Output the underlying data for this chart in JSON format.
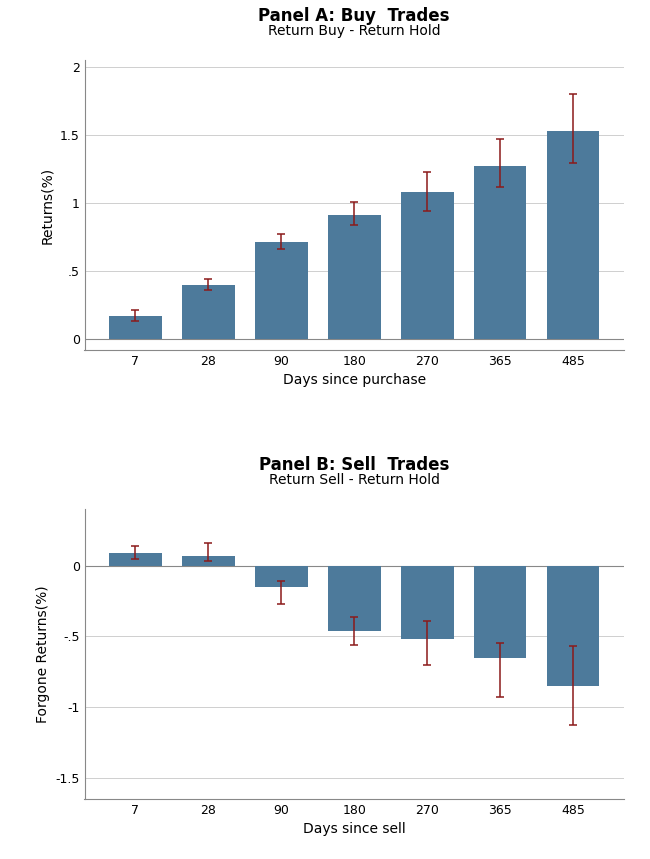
{
  "panel_a": {
    "title": "Panel A: Buy  Trades",
    "subtitle": "Return Buy - Return Hold",
    "xlabel": "Days since purchase",
    "ylabel": "Returns(%)",
    "categories": [
      7,
      28,
      90,
      180,
      270,
      365,
      485
    ],
    "values": [
      0.17,
      0.4,
      0.71,
      0.91,
      1.08,
      1.27,
      1.53
    ],
    "err_low": [
      0.04,
      0.04,
      0.05,
      0.07,
      0.14,
      0.15,
      0.24
    ],
    "err_high": [
      0.04,
      0.04,
      0.06,
      0.1,
      0.15,
      0.2,
      0.27
    ],
    "ylim": [
      -0.08,
      2.05
    ],
    "yticks": [
      0.0,
      0.5,
      1.0,
      1.5,
      2.0
    ],
    "ytick_labels": [
      "0",
      ".5",
      "1",
      "1.5",
      "2"
    ]
  },
  "panel_b": {
    "title": "Panel B: Sell  Trades",
    "subtitle": "Return Sell - Return Hold",
    "xlabel": "Days since sell",
    "ylabel": "Forgone Returns(%)",
    "categories": [
      7,
      28,
      90,
      180,
      270,
      365,
      485
    ],
    "values": [
      0.09,
      0.07,
      -0.15,
      -0.46,
      -0.52,
      -0.65,
      -0.85
    ],
    "err_low": [
      0.04,
      0.04,
      0.12,
      0.1,
      0.18,
      0.28,
      0.28
    ],
    "err_high": [
      0.05,
      0.09,
      0.04,
      0.1,
      0.13,
      0.1,
      0.28
    ],
    "ylim": [
      -1.65,
      0.4
    ],
    "yticks": [
      -1.5,
      -1.0,
      -0.5,
      0.0
    ],
    "ytick_labels": [
      "-1.5",
      "-1",
      "-.5",
      "0"
    ]
  },
  "bar_color": "#4d7a9b",
  "err_color": "#8b1a1a",
  "bar_width": 0.72,
  "bg_color": "#ffffff",
  "grid_color": "#c8c8c8",
  "title_fontsize": 12,
  "subtitle_fontsize": 10,
  "axis_label_fontsize": 10,
  "tick_fontsize": 9
}
